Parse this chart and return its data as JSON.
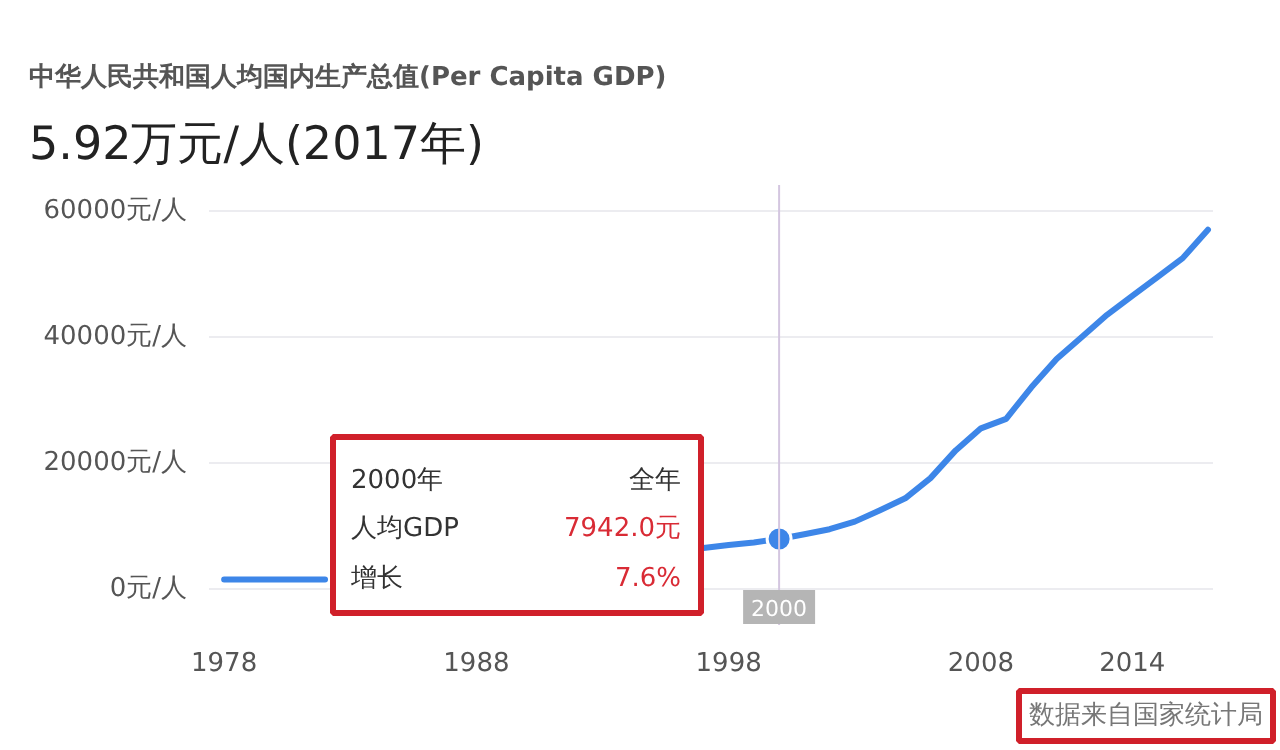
{
  "chart_data": {
    "type": "line",
    "title": "中华人民共和国人均国内生产总值(Per Capita GDP)",
    "subtitle": "5.92万元/人(2017年)",
    "x": [
      1978,
      1979,
      1980,
      1981,
      1982,
      1983,
      1984,
      1985,
      1986,
      1987,
      1988,
      1989,
      1990,
      1991,
      1992,
      1993,
      1994,
      1995,
      1996,
      1997,
      1998,
      1999,
      2000,
      2001,
      2002,
      2003,
      2004,
      2005,
      2006,
      2007,
      2008,
      2009,
      2010,
      2011,
      2012,
      2013,
      2014,
      2015,
      2016,
      2017
    ],
    "series": [
      {
        "color": "#3d86e8",
        "values": [
          1500,
          1500,
          1500,
          1500,
          1500,
          null,
          null,
          null,
          null,
          null,
          null,
          null,
          null,
          null,
          null,
          null,
          null,
          null,
          null,
          6500,
          7000,
          7400,
          7942,
          8700,
          9500,
          10700,
          12500,
          14400,
          17600,
          22000,
          25500,
          27000,
          32000,
          36500,
          40000,
          43500,
          46500,
          49500,
          52500,
          57000
        ]
      },
      {
        "type": "scatter",
        "color": "#3d86e8",
        "marker": "circle",
        "x": [
          2000
        ],
        "values": [
          7942
        ]
      }
    ],
    "xlim": [
      1977.4,
      2017.2
    ],
    "ylim": [
      -5700,
      64100
    ],
    "xticks": [
      1978,
      1988,
      1998,
      2008,
      2014
    ],
    "yticks": [
      {
        "value": 0,
        "label": "0元/人"
      },
      {
        "value": 20000,
        "label": "20000元/人"
      },
      {
        "value": 40000,
        "label": "40000元/人"
      },
      {
        "value": 60000,
        "label": "60000元/人"
      }
    ],
    "grid": "y",
    "line_style": "solid",
    "ref_lines": [
      {
        "axis": "x",
        "value": 2000,
        "label": "2000",
        "color": "#d4c6e0"
      }
    ],
    "annotations": [
      "2000年",
      "全年",
      "人均GDP",
      "7942.0元",
      "增长",
      "7.6%",
      "数据来自国家统计局"
    ]
  }
}
